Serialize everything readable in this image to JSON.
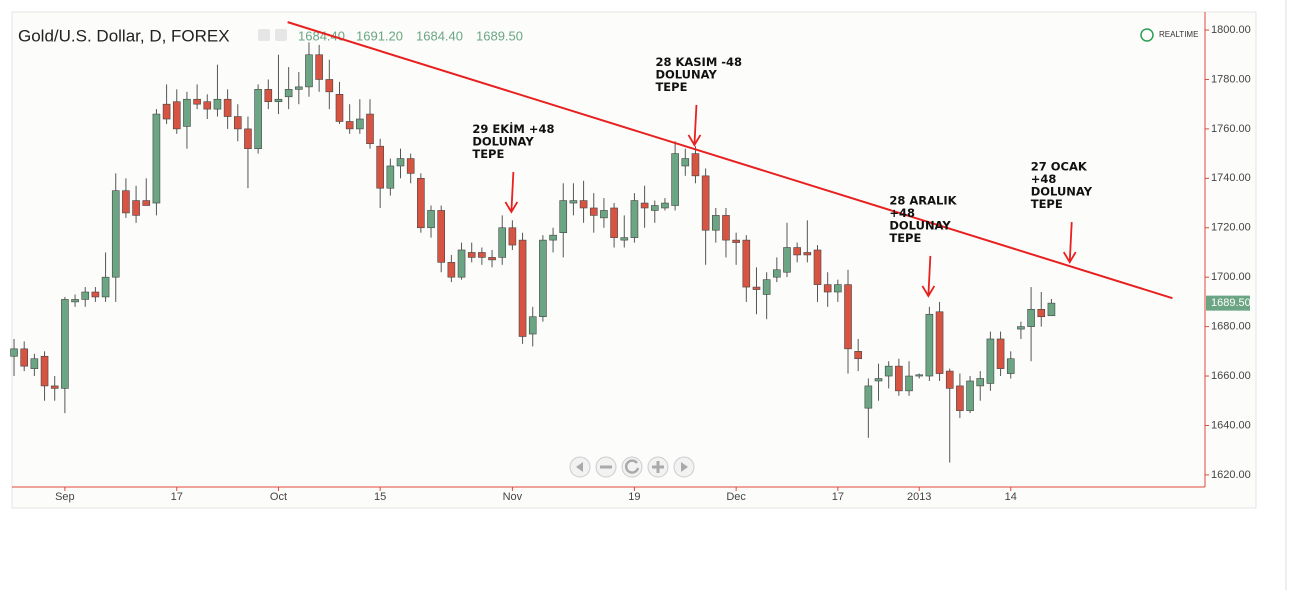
{
  "chart_data": {
    "type": "candlestick",
    "title": "Gold/U.S. Dollar, D, FOREX",
    "realtime_label": "REALTIME",
    "last_labels": [
      "1684.40",
      "1691.20",
      "1684.40",
      "1689.50"
    ],
    "up_color": "#6ba583",
    "down_color": "#d75442",
    "categories": [
      null,
      null,
      null,
      null,
      null,
      "Sep",
      null,
      null,
      null,
      null,
      null,
      null,
      null,
      null,
      null,
      null,
      "17",
      null,
      null,
      null,
      null,
      null,
      null,
      null,
      null,
      null,
      "Oct",
      null,
      null,
      null,
      null,
      null,
      null,
      null,
      null,
      null,
      "15",
      null,
      null,
      null,
      null,
      null,
      null,
      null,
      null,
      null,
      null,
      null,
      null,
      "Nov",
      null,
      null,
      null,
      null,
      null,
      null,
      null,
      null,
      null,
      null,
      null,
      "19",
      null,
      null,
      null,
      null,
      null,
      null,
      null,
      null,
      null,
      "Dec",
      null,
      null,
      null,
      null,
      null,
      null,
      null,
      null,
      null,
      "17",
      null,
      null,
      null,
      null,
      null,
      null,
      null,
      "2013",
      null,
      null,
      null,
      null,
      null,
      null,
      null,
      null,
      "14",
      null,
      null,
      null,
      null
    ],
    "open": [
      1668,
      1671,
      1663,
      1668,
      1656,
      1655,
      1690,
      1691,
      1694,
      1692,
      1700,
      1735,
      1731,
      1731,
      1730,
      1770,
      1771,
      1761,
      1772,
      1771,
      1768,
      1772,
      1765,
      1760,
      1752,
      1776,
      1771,
      1773,
      1776,
      1777,
      1790,
      1780,
      1774,
      1763,
      1760,
      1766,
      1753,
      1736,
      1745,
      1748,
      1740,
      1720,
      1727,
      1706,
      1700,
      1710,
      1710,
      1708,
      1708,
      1720,
      1715,
      1677,
      1684,
      1715,
      1718,
      1730,
      1731,
      1728,
      1724,
      1728,
      1715,
      1716,
      1730,
      1727,
      1728,
      1729,
      1745,
      1750,
      1741,
      1719,
      1725,
      1715,
      1715,
      1696,
      1693,
      1700,
      1702,
      1712,
      1710,
      1711,
      1697,
      1694,
      1697,
      1670,
      1647,
      1658,
      1660,
      1664,
      1654,
      1660,
      1660,
      1686,
      1662,
      1656,
      1646,
      1656,
      1657,
      1675,
      1661,
      1679,
      1680,
      1687,
      1684.4
    ],
    "high": [
      1675,
      1674,
      1669,
      1670,
      1660,
      1692,
      1693,
      1696,
      1696,
      1710,
      1742,
      1740,
      1737,
      1740,
      1768,
      1778,
      1776,
      1775,
      1778,
      1774,
      1786,
      1776,
      1770,
      1765,
      1778,
      1780,
      1790,
      1785,
      1783,
      1795,
      1794,
      1788,
      1779,
      1770,
      1772,
      1772,
      1756,
      1748,
      1752,
      1750,
      1742,
      1729,
      1729,
      1709,
      1714,
      1714,
      1712,
      1711,
      1725,
      1723,
      1718,
      1688,
      1717,
      1720,
      1738,
      1738,
      1739,
      1734,
      1732,
      1730,
      1725,
      1734,
      1737,
      1731,
      1732,
      1755,
      1752,
      1753,
      1744,
      1728,
      1728,
      1718,
      1717,
      1704,
      1702,
      1708,
      1722,
      1714,
      1723,
      1713,
      1702,
      1699,
      1703,
      1675,
      1659,
      1665,
      1666,
      1667,
      1666,
      1661,
      1688,
      1690,
      1663,
      1661,
      1660,
      1662,
      1678,
      1678,
      1670,
      1682,
      1696,
      1694,
      1691.2
    ],
    "low": [
      1660,
      1662,
      1660,
      1650,
      1650,
      1645,
      1688,
      1688,
      1690,
      1690,
      1690,
      1724,
      1722,
      1729,
      1725,
      1762,
      1758,
      1752,
      1768,
      1764,
      1765,
      1760,
      1755,
      1736,
      1750,
      1768,
      1766,
      1768,
      1770,
      1773,
      1775,
      1768,
      1762,
      1758,
      1758,
      1752,
      1728,
      1733,
      1740,
      1738,
      1718,
      1716,
      1702,
      1698,
      1699,
      1706,
      1705,
      1704,
      1705,
      1711,
      1673,
      1672,
      1682,
      1710,
      1708,
      1725,
      1722,
      1718,
      1720,
      1712,
      1712,
      1714,
      1720,
      1722,
      1727,
      1727,
      1741,
      1738,
      1705,
      1714,
      1708,
      1705,
      1690,
      1685,
      1683,
      1698,
      1700,
      1706,
      1706,
      1690,
      1688,
      1690,
      1661,
      1662,
      1635,
      1650,
      1655,
      1652,
      1652,
      1659,
      1658,
      1658,
      1625,
      1643,
      1645,
      1650,
      1654,
      1660,
      1659,
      1675,
      1666,
      1680,
      1684.4
    ],
    "close": [
      1671,
      1664,
      1667,
      1656,
      1655,
      1691,
      1691,
      1694,
      1692,
      1700,
      1735,
      1726,
      1725,
      1729,
      1766,
      1764,
      1760,
      1772,
      1770,
      1768,
      1772,
      1765,
      1760,
      1752,
      1776,
      1771,
      1772,
      1776,
      1777,
      1790,
      1780,
      1775,
      1763,
      1760,
      1764,
      1754,
      1736,
      1745,
      1748,
      1742,
      1720,
      1727,
      1706,
      1700,
      1711,
      1708,
      1708,
      1707,
      1720,
      1713,
      1676,
      1684,
      1715,
      1717,
      1731,
      1731,
      1728,
      1725,
      1727,
      1716,
      1716,
      1731,
      1728,
      1729,
      1730,
      1750,
      1748,
      1741,
      1719,
      1725,
      1715,
      1714,
      1696,
      1695,
      1699,
      1703,
      1712,
      1709,
      1709,
      1697,
      1694,
      1697,
      1671,
      1667,
      1656,
      1659,
      1664,
      1654,
      1660,
      1660.5,
      1685,
      1661,
      1655,
      1646,
      1658,
      1659,
      1675,
      1663,
      1667,
      1680,
      1687,
      1684,
      1689.5
    ],
    "xlim": [
      -0.2,
      117.1
    ],
    "ylim": [
      1615.1,
      1807.3
    ],
    "yticks": [
      {
        "value": 1620,
        "label": "1620.00"
      },
      {
        "value": 1640,
        "label": "1640.00"
      },
      {
        "value": 1660,
        "label": "1660.00"
      },
      {
        "value": 1680,
        "label": "1680.00"
      },
      {
        "value": 1700,
        "label": "1700.00"
      },
      {
        "value": 1720,
        "label": "1720.00"
      },
      {
        "value": 1740,
        "label": "1740.00"
      },
      {
        "value": 1760,
        "label": "1760.00"
      },
      {
        "value": 1780,
        "label": "1780.00"
      },
      {
        "value": 1800,
        "label": "1800.00"
      }
    ],
    "trendline": {
      "color": "#e8201f",
      "x": [
        26.9,
        113.9
      ],
      "y": [
        1803.2,
        1691.5
      ]
    },
    "annotations": [
      {
        "lines": [
          "29 EKİM +48",
          "DOLUNAY",
          "TEPE"
        ],
        "x": 48.9,
        "y": 1726.4
      },
      {
        "lines": [
          "28 KASIM -48",
          "DOLUNAY",
          "TEPE"
        ],
        "x": 66.9,
        "y": 1753.5
      },
      {
        "lines": [
          "28 ARALIK",
          "+48",
          "DOLUNAY",
          "TEPE"
        ],
        "x": 89.9,
        "y": 1692.4
      },
      {
        "lines": [
          "27 OCAK",
          "+48",
          "DOLUNAY",
          "TEPE"
        ],
        "x": 103.8,
        "y": 1706.1
      }
    ]
  }
}
